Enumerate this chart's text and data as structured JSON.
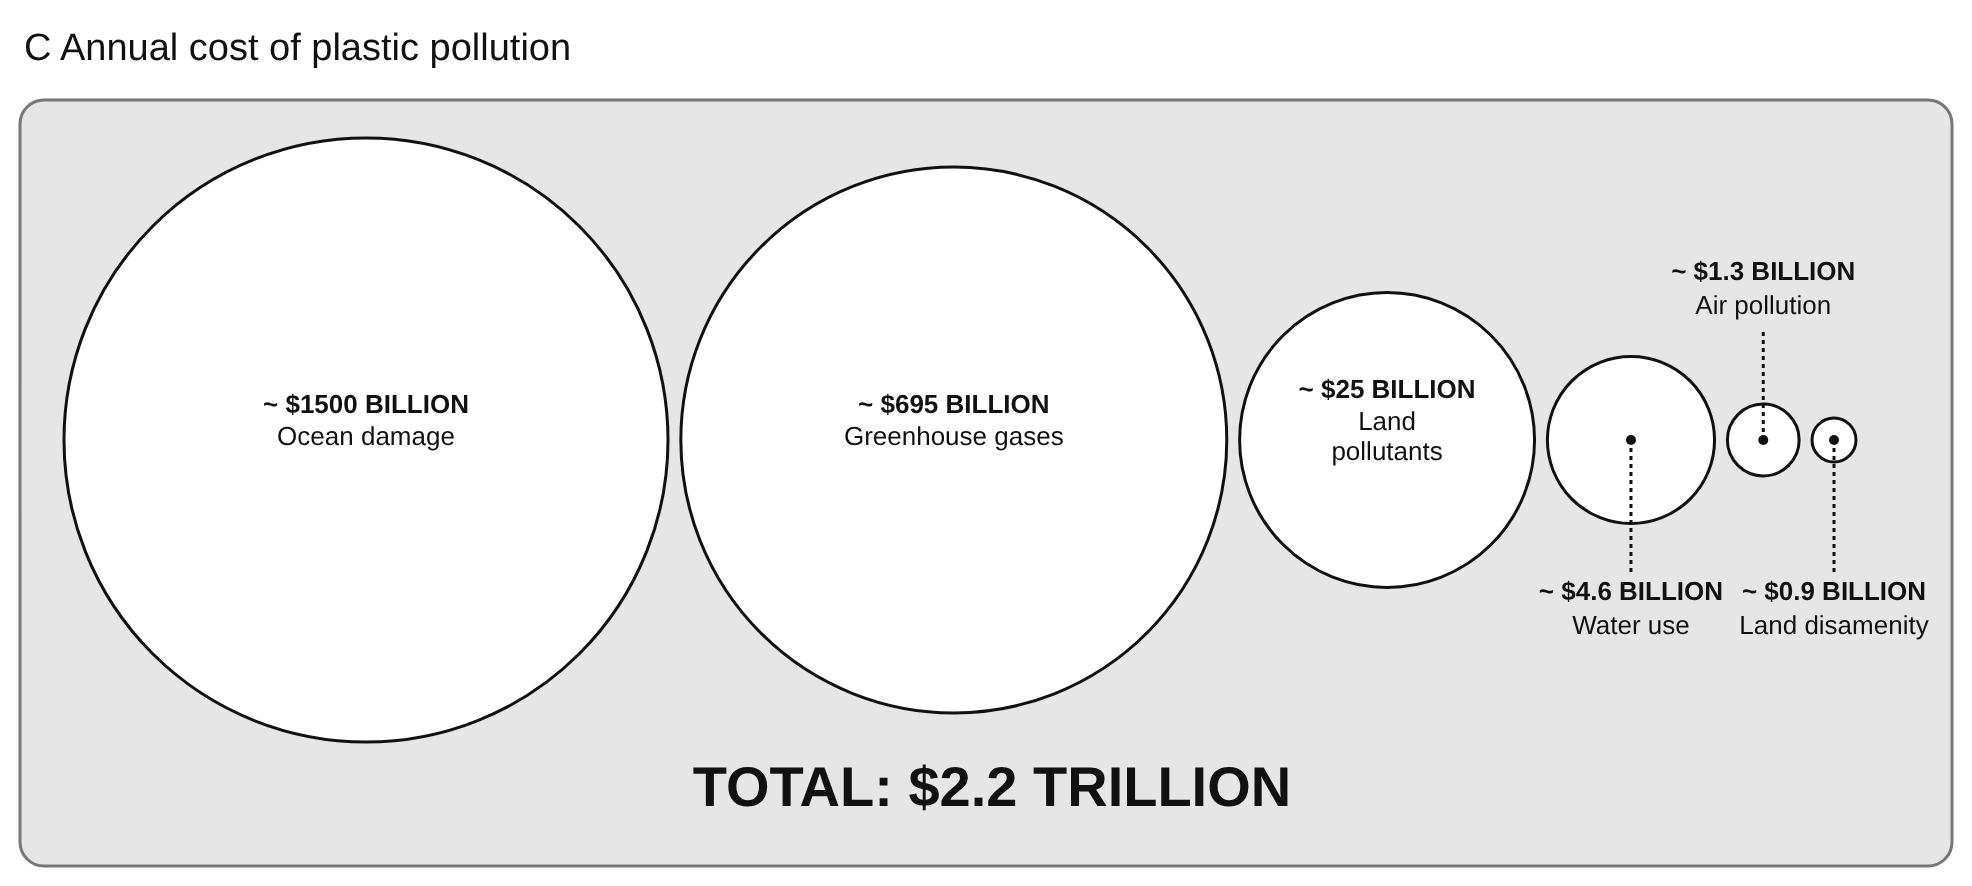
{
  "chart_data": {
    "type": "other",
    "title": "C  Annual cost of plastic pollution",
    "categories": [
      "Ocean damage",
      "Greenhouse gases",
      "Land pollutants",
      "Water use",
      "Air pollution",
      "Land disamenity"
    ],
    "values": [
      1500,
      695,
      25,
      4.6,
      1.3,
      0.9
    ],
    "value_labels": [
      "~ $1500 BILLION",
      "~ $695 BILLION",
      "~ $25 BILLION",
      "~ $4.6 BILLION",
      "~ $1.3 BILLION",
      "~ $0.9 BILLION"
    ],
    "annotations": [
      "TOTAL: $2.2 TRILLION"
    ]
  }
}
